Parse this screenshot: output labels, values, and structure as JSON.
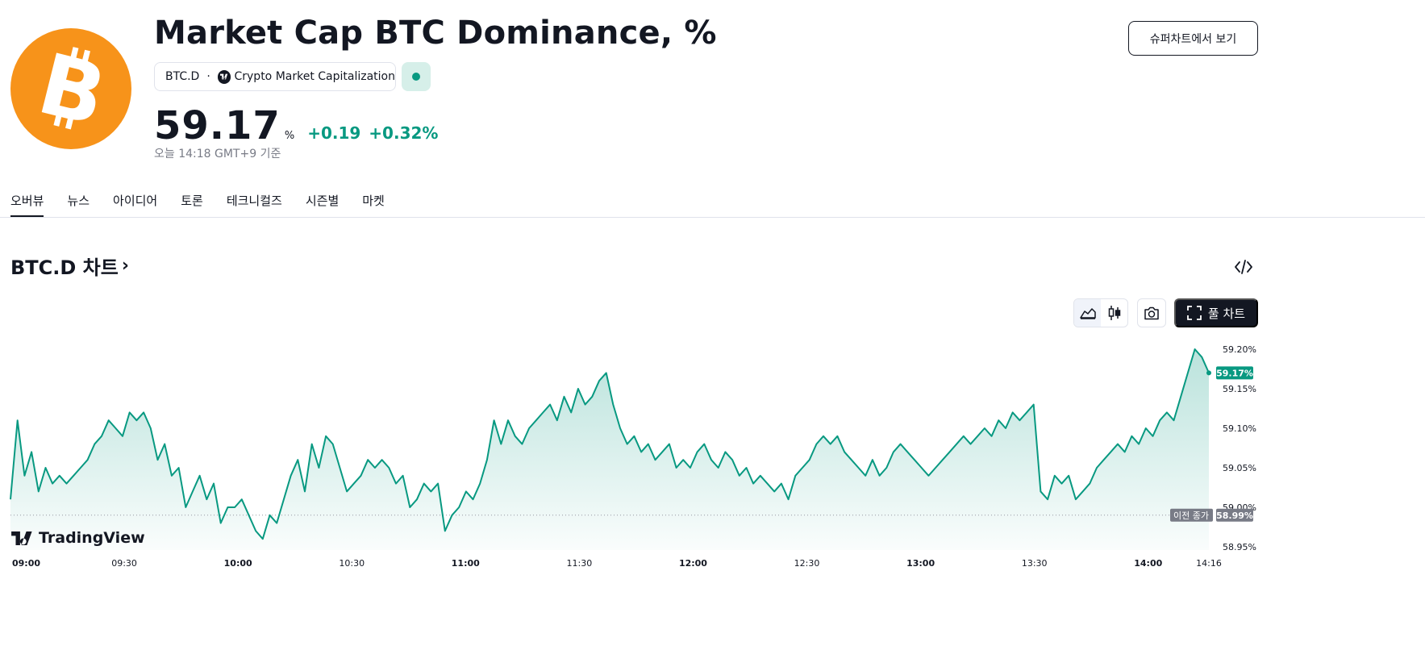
{
  "header": {
    "title": "Market Cap BTC Dominance, %",
    "symbol": "BTC.D",
    "separator": "·",
    "source": "Crypto Market Capitalization",
    "price": "59.17",
    "unit": "%",
    "change": "+0.19",
    "change_pct": "+0.32%",
    "as_of": "오늘 14:18 GMT+9 기준",
    "supercharts_button": "슈퍼차트에서 보기"
  },
  "colors": {
    "accent_green": "#089981",
    "logo_orange": "#f7931a",
    "dark": "#131722"
  },
  "tabs": [
    {
      "label": "오버뷰",
      "active": true
    },
    {
      "label": "뉴스"
    },
    {
      "label": "아이디어"
    },
    {
      "label": "토론"
    },
    {
      "label": "테크니컬즈"
    },
    {
      "label": "시즌별"
    },
    {
      "label": "마켓"
    }
  ],
  "chart_section": {
    "title": "BTC.D 차트",
    "full_chart_button": "풀 차트",
    "icons": [
      "embed-icon",
      "area-chart-icon",
      "candles-icon",
      "camera-icon",
      "fullscreen-icon"
    ],
    "brand": "TradingView"
  },
  "chart_data": {
    "type": "area",
    "x_tick_labels": [
      "09:00",
      "09:30",
      "10:00",
      "10:30",
      "11:00",
      "11:30",
      "12:00",
      "12:30",
      "13:00",
      "13:30",
      "14:00",
      "14:16"
    ],
    "y_tick_labels": [
      "59.20%",
      "59.15%",
      "59.10%",
      "59.05%",
      "59.00%",
      "58.95%"
    ],
    "ylim": [
      58.95,
      59.2
    ],
    "last_value_label": "59.17%",
    "previous_close": 58.99,
    "previous_close_label": "58.99%",
    "previous_close_caption": "이전 종가",
    "line_color": "#089981",
    "x_range": [
      "09:00",
      "14:16"
    ],
    "values": [
      59.01,
      59.11,
      59.04,
      59.07,
      59.02,
      59.05,
      59.03,
      59.04,
      59.03,
      59.04,
      59.05,
      59.06,
      59.08,
      59.09,
      59.11,
      59.1,
      59.09,
      59.12,
      59.11,
      59.12,
      59.1,
      59.06,
      59.08,
      59.04,
      59.05,
      59.0,
      59.02,
      59.04,
      59.01,
      59.03,
      58.98,
      59.0,
      59.0,
      59.01,
      58.99,
      58.97,
      58.96,
      58.99,
      58.98,
      59.01,
      59.04,
      59.06,
      59.02,
      59.08,
      59.05,
      59.09,
      59.08,
      59.05,
      59.02,
      59.03,
      59.04,
      59.06,
      59.05,
      59.06,
      59.05,
      59.03,
      59.04,
      59.0,
      59.01,
      59.03,
      59.02,
      59.03,
      58.97,
      58.99,
      59.0,
      59.02,
      59.01,
      59.03,
      59.06,
      59.11,
      59.08,
      59.11,
      59.09,
      59.08,
      59.1,
      59.11,
      59.12,
      59.13,
      59.11,
      59.14,
      59.12,
      59.15,
      59.13,
      59.14,
      59.16,
      59.17,
      59.13,
      59.1,
      59.08,
      59.09,
      59.07,
      59.08,
      59.06,
      59.07,
      59.08,
      59.05,
      59.06,
      59.05,
      59.07,
      59.08,
      59.06,
      59.05,
      59.07,
      59.06,
      59.04,
      59.05,
      59.03,
      59.04,
      59.03,
      59.02,
      59.03,
      59.01,
      59.04,
      59.05,
      59.06,
      59.08,
      59.09,
      59.08,
      59.09,
      59.07,
      59.06,
      59.05,
      59.04,
      59.06,
      59.04,
      59.05,
      59.07,
      59.08,
      59.07,
      59.06,
      59.05,
      59.04,
      59.05,
      59.06,
      59.07,
      59.08,
      59.09,
      59.08,
      59.09,
      59.1,
      59.09,
      59.11,
      59.1,
      59.12,
      59.11,
      59.12,
      59.13,
      59.02,
      59.01,
      59.04,
      59.03,
      59.04,
      59.01,
      59.02,
      59.03,
      59.05,
      59.06,
      59.07,
      59.08,
      59.07,
      59.09,
      59.08,
      59.1,
      59.09,
      59.11,
      59.12,
      59.11,
      59.14,
      59.17,
      59.2,
      59.19,
      59.17
    ]
  }
}
